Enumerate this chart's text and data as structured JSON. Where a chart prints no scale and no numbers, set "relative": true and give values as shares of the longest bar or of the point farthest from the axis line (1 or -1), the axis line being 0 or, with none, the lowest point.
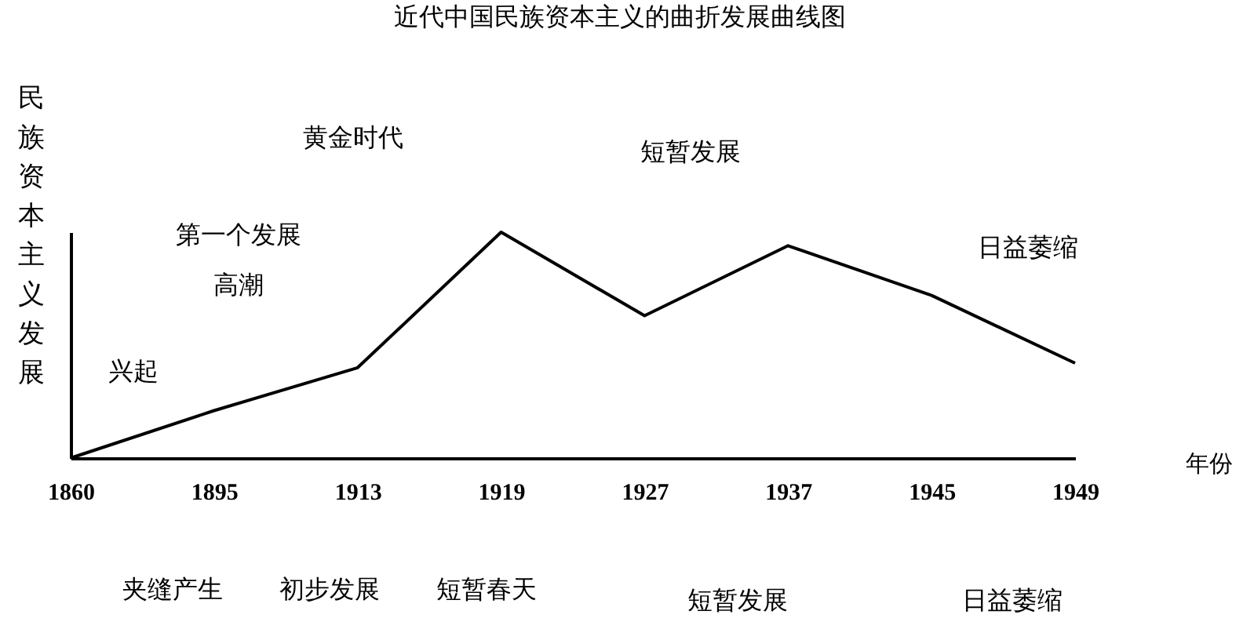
{
  "chart_data": {
    "type": "line",
    "title": "近代中国民族资本主义的曲折发展曲线图",
    "xlabel": "年份",
    "ylabel": "民族资本主义发展",
    "relative": true,
    "categories": [
      "1860",
      "1895",
      "1913",
      "1919",
      "1927",
      "1937",
      "1945",
      "1949"
    ],
    "series": [
      {
        "color": "#000000",
        "values": [
          0,
          0.21,
          0.4,
          1,
          0.63,
          0.94,
          0.72,
          0.42
        ]
      }
    ],
    "annotations": [
      "兴起",
      "第一个发展",
      "高潮",
      "黄金时代",
      "短暂发展",
      "日益萎缩",
      "夹缝产生",
      "初步发展",
      "短暂春天",
      "短暂发展",
      "日益萎缩"
    ]
  }
}
